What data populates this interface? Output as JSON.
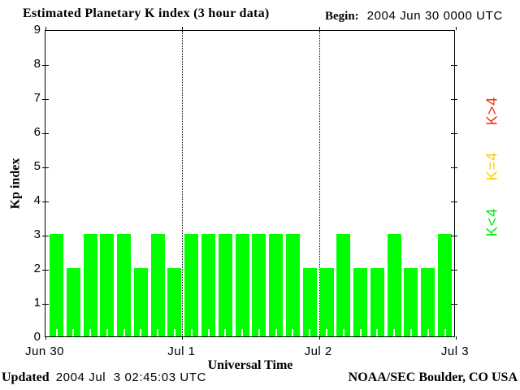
{
  "chart_data": {
    "type": "bar",
    "title": "Estimated Planetary K index (3 hour data)",
    "begin": {
      "label": "Begin:",
      "value": "2004 Jun 30 0000 UTC"
    },
    "ylabel": "Kp index",
    "xlabel": "Universal Time",
    "ylim": [
      0,
      9
    ],
    "yticks": [
      0,
      1,
      2,
      3,
      4,
      5,
      6,
      7,
      8,
      9
    ],
    "x_day_labels": [
      "Jun 30",
      "Jul 1",
      "Jul 2",
      "Jul 3"
    ],
    "bar_interval_hours": 3,
    "values": [
      3,
      2,
      3,
      3,
      3,
      2,
      3,
      2,
      3,
      3,
      3,
      3,
      3,
      3,
      3,
      2,
      2,
      3,
      2,
      2,
      3,
      2,
      2,
      3
    ],
    "bar_color": "#00FF00",
    "grid": "dotted vertical lines at day boundaries",
    "legend_position": "right",
    "legend": [
      {
        "label": "K>4",
        "color": "#EE3311"
      },
      {
        "label": "K=4",
        "color": "#FFCC00"
      },
      {
        "label": "K<4",
        "color": "#00EE00"
      }
    ]
  },
  "footer": {
    "updated_label": "Updated",
    "updated_value": "2004 Jul  3 02:45:03 UTC",
    "credit": "NOAA/SEC Boulder, CO USA"
  }
}
